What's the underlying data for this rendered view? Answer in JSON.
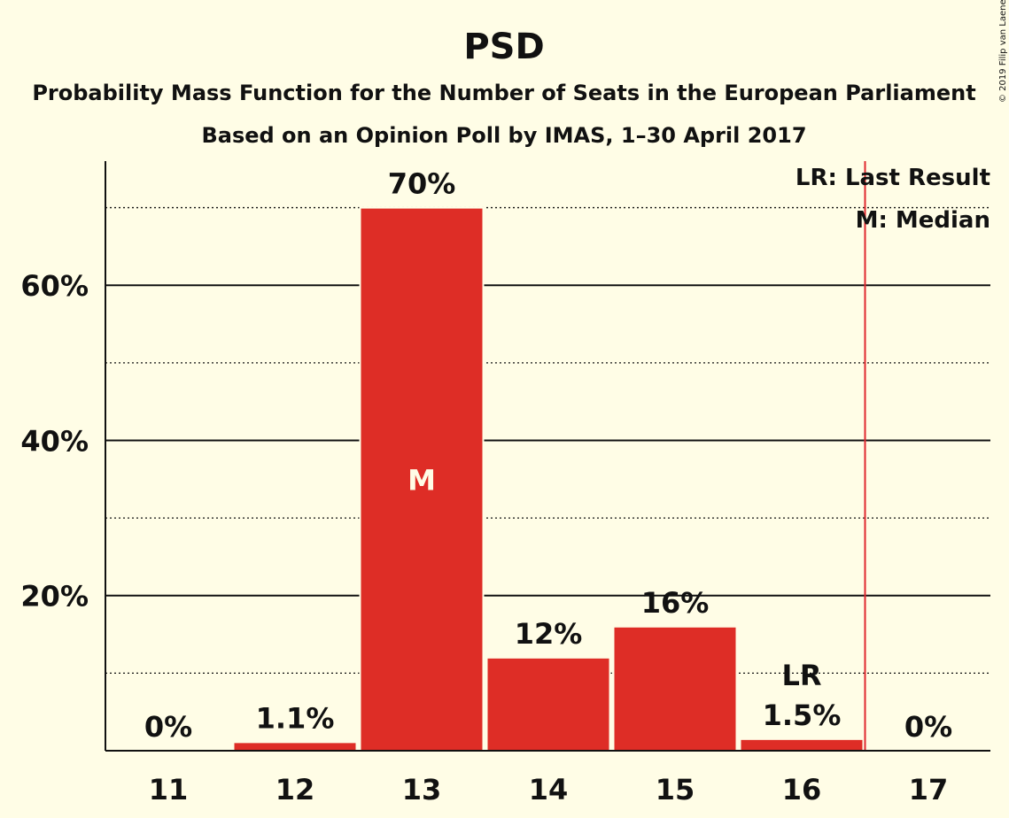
{
  "chart_data": {
    "type": "bar",
    "title": "PSD",
    "subtitle_lines": [
      "Probability Mass Function for the Number of Seats in the European Parliament",
      "Based on an Opinion Poll by IMAS, 1–30 April 2017"
    ],
    "categories": [
      "11",
      "12",
      "13",
      "14",
      "15",
      "16",
      "17"
    ],
    "values": [
      0,
      1.1,
      70,
      12,
      16,
      1.5,
      0
    ],
    "value_labels": [
      "0%",
      "1.1%",
      "70%",
      "12%",
      "16%",
      "1.5%",
      "0%"
    ],
    "ylim": [
      0,
      76
    ],
    "yticks": [
      {
        "value": 20,
        "label": "20%"
      },
      {
        "value": 40,
        "label": "40%"
      },
      {
        "value": 60,
        "label": "60%"
      }
    ],
    "minor_gridlines": [
      10,
      30,
      50,
      70
    ],
    "median_category": "13",
    "median_marker": "M",
    "last_result_category": "16",
    "last_result_marker": "LR",
    "legend": {
      "position": "top-right",
      "items": [
        "LR: Last Result",
        "M: Median"
      ]
    },
    "bar_color": "#de2d26",
    "last_result_line_color": "#e0282f",
    "copyright": "© 2019 Filip van Laenen"
  }
}
